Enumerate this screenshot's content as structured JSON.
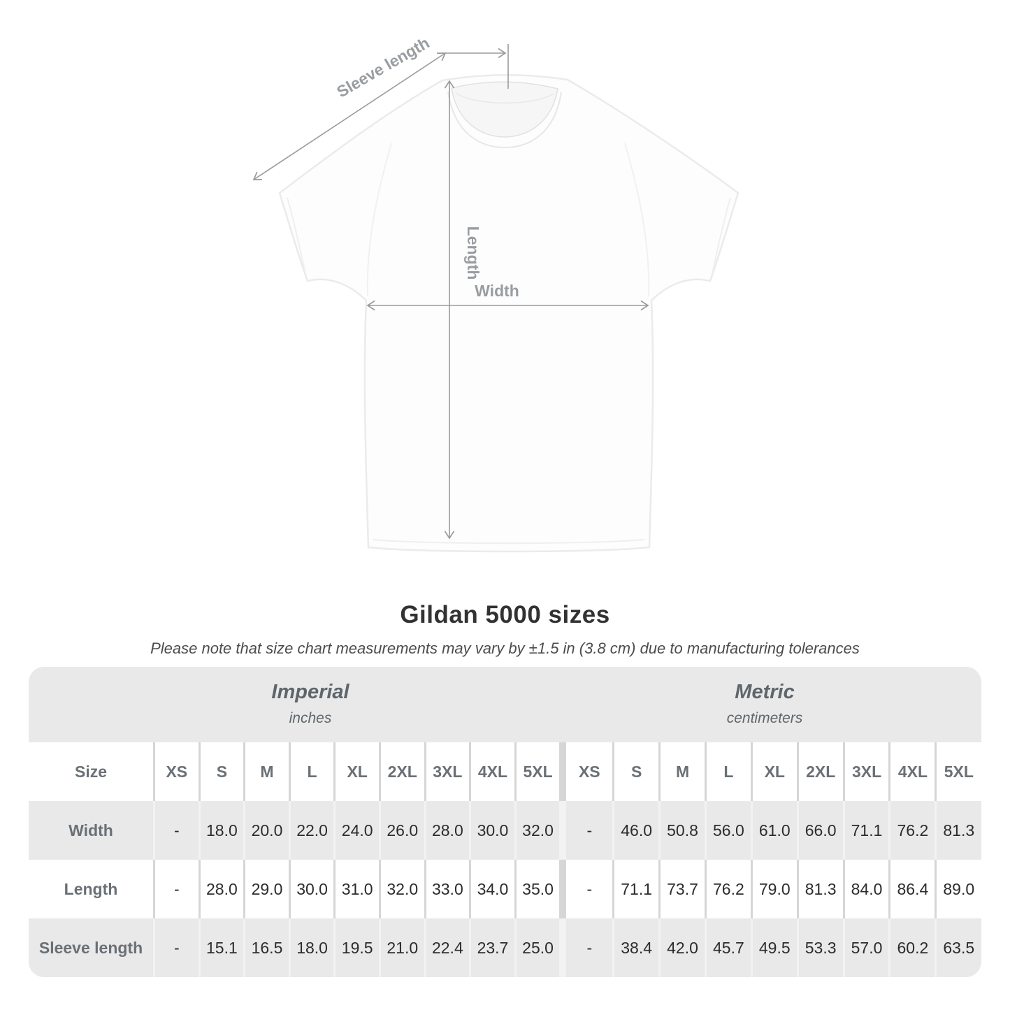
{
  "diagram": {
    "sleeve_length_label": "Sleeve length",
    "length_label": "Length",
    "width_label": "Width"
  },
  "header": {
    "title": "Gildan 5000 sizes",
    "subtitle": "Please note that size chart measurements may vary by ±1.5 in (3.8 cm) due to manufacturing tolerances"
  },
  "chart_data": {
    "type": "table",
    "title": "Gildan 5000 sizes",
    "note": "Please note that size chart measurements may vary by ±1.5 in (3.8 cm) due to manufacturing tolerances",
    "corner_header": "Size",
    "column_groups": [
      {
        "label": "Imperial",
        "unit": "inches"
      },
      {
        "label": "Metric",
        "unit": "centimeters"
      }
    ],
    "size_columns": [
      "XS",
      "S",
      "M",
      "L",
      "XL",
      "2XL",
      "3XL",
      "4XL",
      "5XL"
    ],
    "rows": [
      {
        "label": "Width",
        "imperial": [
          "-",
          "18.0",
          "20.0",
          "22.0",
          "24.0",
          "26.0",
          "28.0",
          "30.0",
          "32.0"
        ],
        "metric": [
          "-",
          "46.0",
          "50.8",
          "56.0",
          "61.0",
          "66.0",
          "71.1",
          "76.2",
          "81.3"
        ]
      },
      {
        "label": "Length",
        "imperial": [
          "-",
          "28.0",
          "29.0",
          "30.0",
          "31.0",
          "32.0",
          "33.0",
          "34.0",
          "35.0"
        ],
        "metric": [
          "-",
          "71.1",
          "73.7",
          "76.2",
          "79.0",
          "81.3",
          "84.0",
          "86.4",
          "89.0"
        ]
      },
      {
        "label": "Sleeve length",
        "imperial": [
          "-",
          "15.1",
          "16.5",
          "18.0",
          "19.5",
          "21.0",
          "22.4",
          "23.7",
          "25.0"
        ],
        "metric": [
          "-",
          "38.4",
          "42.0",
          "45.7",
          "49.5",
          "53.3",
          "57.0",
          "60.2",
          "63.5"
        ]
      }
    ]
  },
  "colors": {
    "table_header_gray": "#e9e9e9",
    "row_alt_gray": "#e9e9e9",
    "separator_on_white": "#d6d6d6",
    "separator_on_gray": "#f2f2f2",
    "header_text": "#6a7075",
    "value_text": "#2c2c2c",
    "title_text": "#323232",
    "diagram_annotation": "#999da1"
  }
}
